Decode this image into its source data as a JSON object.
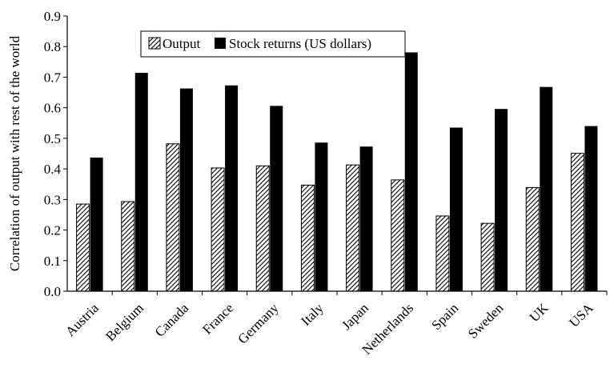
{
  "chart_data": {
    "type": "bar",
    "categories": [
      "Austria",
      "Belgium",
      "Canada",
      "France",
      "Germany",
      "Italy",
      "Japan",
      "Netherlands",
      "Spain",
      "Sweden",
      "UK",
      "USA"
    ],
    "series": [
      {
        "name": "Output",
        "values": [
          0.285,
          0.293,
          0.482,
          0.403,
          0.41,
          0.347,
          0.413,
          0.364,
          0.246,
          0.222,
          0.339,
          0.451
        ],
        "color": "#ffffff",
        "pattern": "hatched"
      },
      {
        "name": "Stock returns (US dollars)",
        "values": [
          0.437,
          0.714,
          0.663,
          0.673,
          0.606,
          0.486,
          0.473,
          0.781,
          0.535,
          0.596,
          0.668,
          0.54
        ],
        "color": "#000000",
        "pattern": "solid"
      }
    ],
    "xlabel": "",
    "ylabel": "Correlation of output with rest of the world",
    "ylim": [
      0,
      0.9
    ],
    "yticks": [
      "0.0",
      "0.1",
      "0.2",
      "0.3",
      "0.4",
      "0.5",
      "0.6",
      "0.7",
      "0.8",
      "0.9"
    ],
    "grid": false,
    "legend_position": "top-center"
  }
}
